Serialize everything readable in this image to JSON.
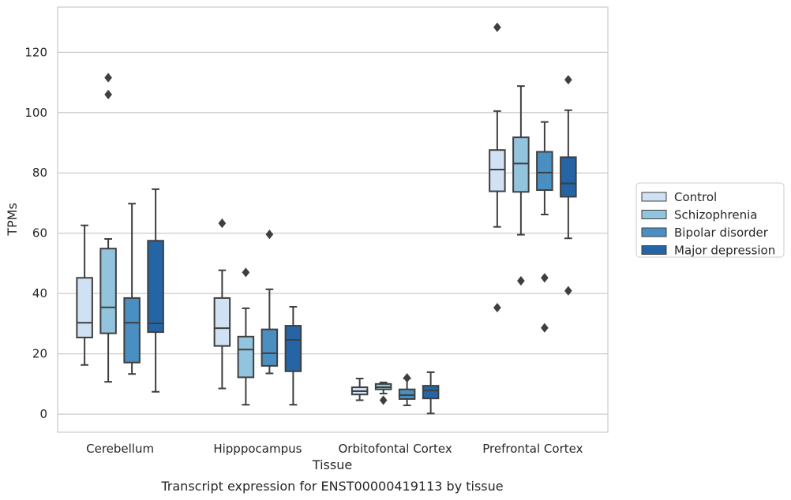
{
  "caption": "Transcript expression for ENST00000419113 by tissue",
  "chart_data": {
    "type": "box",
    "xlabel": "Tissue",
    "ylabel": "TPMs",
    "ylim": [
      -6,
      135
    ],
    "yticks": [
      0,
      20,
      40,
      60,
      80,
      100,
      120
    ],
    "grid": "horizontal",
    "legend_position": "right",
    "categories": [
      "Cerebellum",
      "Hipppocampus",
      "Orbitofontal Cortex",
      "Prefrontal Cortex"
    ],
    "series": [
      {
        "name": "Control",
        "color": "#cfe1f2",
        "boxes": [
          {
            "whisker_low": 16.3,
            "q1": 25.4,
            "median": 30.3,
            "q3": 45.2,
            "whisker_high": 62.6,
            "outliers": []
          },
          {
            "whisker_low": 8.5,
            "q1": 22.6,
            "median": 28.5,
            "q3": 38.5,
            "whisker_high": 47.7,
            "outliers": [
              63.3
            ]
          },
          {
            "whisker_low": 4.6,
            "q1": 6.5,
            "median": 7.6,
            "q3": 8.9,
            "whisker_high": 11.8,
            "outliers": []
          },
          {
            "whisker_low": 62.1,
            "q1": 73.9,
            "median": 81.1,
            "q3": 87.6,
            "whisker_high": 100.5,
            "outliers": [
              128.3,
              35.3
            ]
          }
        ]
      },
      {
        "name": "Schizophrenia",
        "color": "#93c4de",
        "boxes": [
          {
            "whisker_low": 10.7,
            "q1": 26.8,
            "median": 35.4,
            "q3": 54.9,
            "whisker_high": 58.1,
            "outliers": [
              111.6,
              106.0
            ]
          },
          {
            "whisker_low": 3.1,
            "q1": 12.2,
            "median": 21.4,
            "q3": 25.7,
            "whisker_high": 35.1,
            "outliers": [
              47.0
            ]
          },
          {
            "whisker_low": 6.8,
            "q1": 8.2,
            "median": 8.9,
            "q3": 10.0,
            "whisker_high": 10.5,
            "outliers": [
              4.6
            ]
          },
          {
            "whisker_low": 59.5,
            "q1": 73.7,
            "median": 83.1,
            "q3": 91.8,
            "whisker_high": 108.8,
            "outliers": [
              44.2
            ]
          }
        ]
      },
      {
        "name": "Bipolar disorder",
        "color": "#4a8fc2",
        "boxes": [
          {
            "whisker_low": 13.3,
            "q1": 17.1,
            "median": 30.3,
            "q3": 38.5,
            "whisker_high": 69.8,
            "outliers": []
          },
          {
            "whisker_low": 13.5,
            "q1": 16.0,
            "median": 20.2,
            "q3": 28.1,
            "whisker_high": 41.4,
            "outliers": [
              59.6
            ]
          },
          {
            "whisker_low": 2.9,
            "q1": 5.0,
            "median": 6.3,
            "q3": 8.2,
            "whisker_high": 11.8,
            "outliers": [
              12.0
            ]
          },
          {
            "whisker_low": 66.2,
            "q1": 74.3,
            "median": 80.1,
            "q3": 87.0,
            "whisker_high": 96.9,
            "outliers": [
              45.2,
              28.6
            ]
          }
        ]
      },
      {
        "name": "Major depression",
        "color": "#2565a6",
        "boxes": [
          {
            "whisker_low": 7.4,
            "q1": 27.2,
            "median": 30.1,
            "q3": 57.5,
            "whisker_high": 74.6,
            "outliers": []
          },
          {
            "whisker_low": 3.1,
            "q1": 14.2,
            "median": 24.6,
            "q3": 29.3,
            "whisker_high": 35.6,
            "outliers": []
          },
          {
            "whisker_low": 0.2,
            "q1": 5.2,
            "median": 7.8,
            "q3": 9.4,
            "whisker_high": 13.9,
            "outliers": []
          },
          {
            "whisker_low": 58.3,
            "q1": 72.1,
            "median": 76.5,
            "q3": 85.2,
            "whisker_high": 100.8,
            "outliers": [
              110.9,
              40.9
            ]
          }
        ]
      }
    ]
  }
}
